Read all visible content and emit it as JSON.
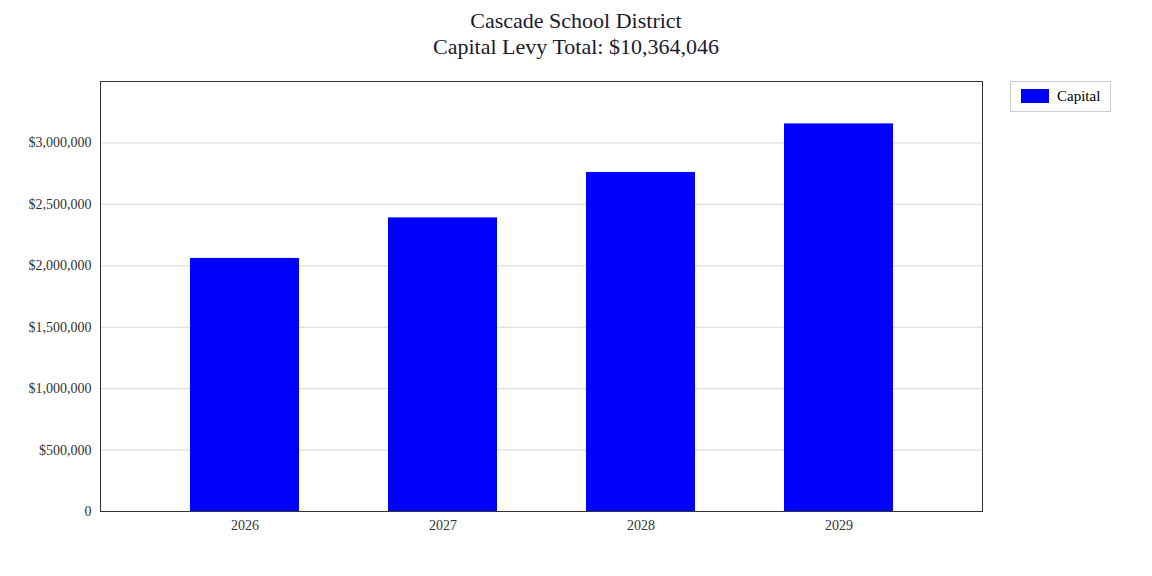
{
  "chart_data": {
    "type": "bar",
    "title": "Cascade School District",
    "subtitle": "Capital Levy Total: $10,364,046",
    "categories": [
      "2026",
      "2027",
      "2028",
      "2029"
    ],
    "series": [
      {
        "name": "Capital",
        "color": "#0000ff",
        "values": [
          2060000,
          2390000,
          2760000,
          3155000
        ]
      }
    ],
    "ylim": [
      0,
      3500000
    ],
    "yticks": [
      0,
      {
        "value": 500000,
        "label": "$500,000"
      },
      {
        "value": 1000000,
        "label": "$1,000,000"
      },
      {
        "value": 1500000,
        "label": "$1,500,000"
      },
      {
        "value": 2000000,
        "label": "$2,000,000"
      },
      {
        "value": 2500000,
        "label": "$2,500,000"
      },
      {
        "value": 3000000,
        "label": "$3,000,000"
      }
    ],
    "grid": true,
    "legend": "right"
  }
}
